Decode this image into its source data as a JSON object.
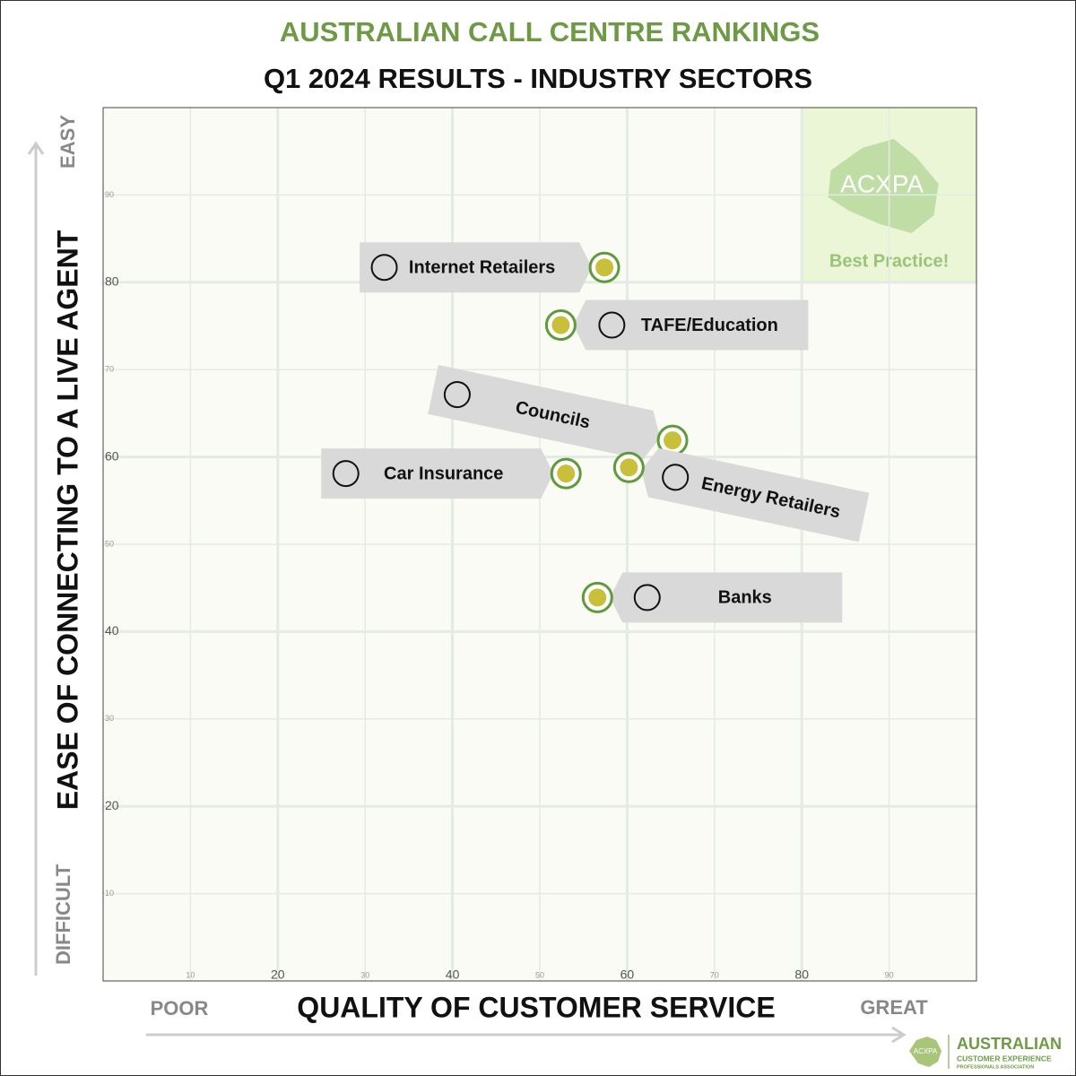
{
  "chart_data": {
    "type": "scatter",
    "title": "AUSTRALIAN CALL CENTRE RANKINGS",
    "subtitle": "Q1 2024 RESULTS - INDUSTRY SECTORS",
    "x_label": "QUALITY OF CUSTOMER SERVICE",
    "y_label": "EASE OF CONNECTING TO A LIVE AGENT",
    "x_low": "POOR",
    "x_high": "GREAT",
    "y_low": "DIFFICULT",
    "y_high": "EASY",
    "xlim": [
      0,
      100
    ],
    "ylim": [
      0,
      100
    ],
    "xticks": [
      10,
      20,
      30,
      40,
      50,
      60,
      70,
      80,
      90
    ],
    "yticks": [
      10,
      20,
      30,
      40,
      50,
      60,
      70,
      80,
      90
    ],
    "grid": true,
    "color": "#c8bf3a",
    "ring_color": "#5e9a3a",
    "points": [
      {
        "label": "Internet Retailers",
        "x": 57.4,
        "y": 81.7
      },
      {
        "label": "TAFE/Education",
        "x": 52.4,
        "y": 75.1
      },
      {
        "label": "Councils",
        "x": 65.2,
        "y": 61.9
      },
      {
        "label": "Car Insurance",
        "x": 53.0,
        "y": 58.1
      },
      {
        "label": "Energy Retailers",
        "x": 60.2,
        "y": 58.8
      },
      {
        "label": "Banks",
        "x": 56.6,
        "y": 43.9
      }
    ],
    "best_practice": {
      "label": "Best Practice!",
      "mark": "ACXPA",
      "x": [
        80,
        100
      ],
      "y": [
        80,
        100
      ]
    },
    "logo": {
      "mark": "ACXPA",
      "line1": "AUSTRALIAN",
      "line2": "CUSTOMER EXPERIENCE",
      "line3": "PROFESSIONALS ASSOCIATION"
    }
  }
}
